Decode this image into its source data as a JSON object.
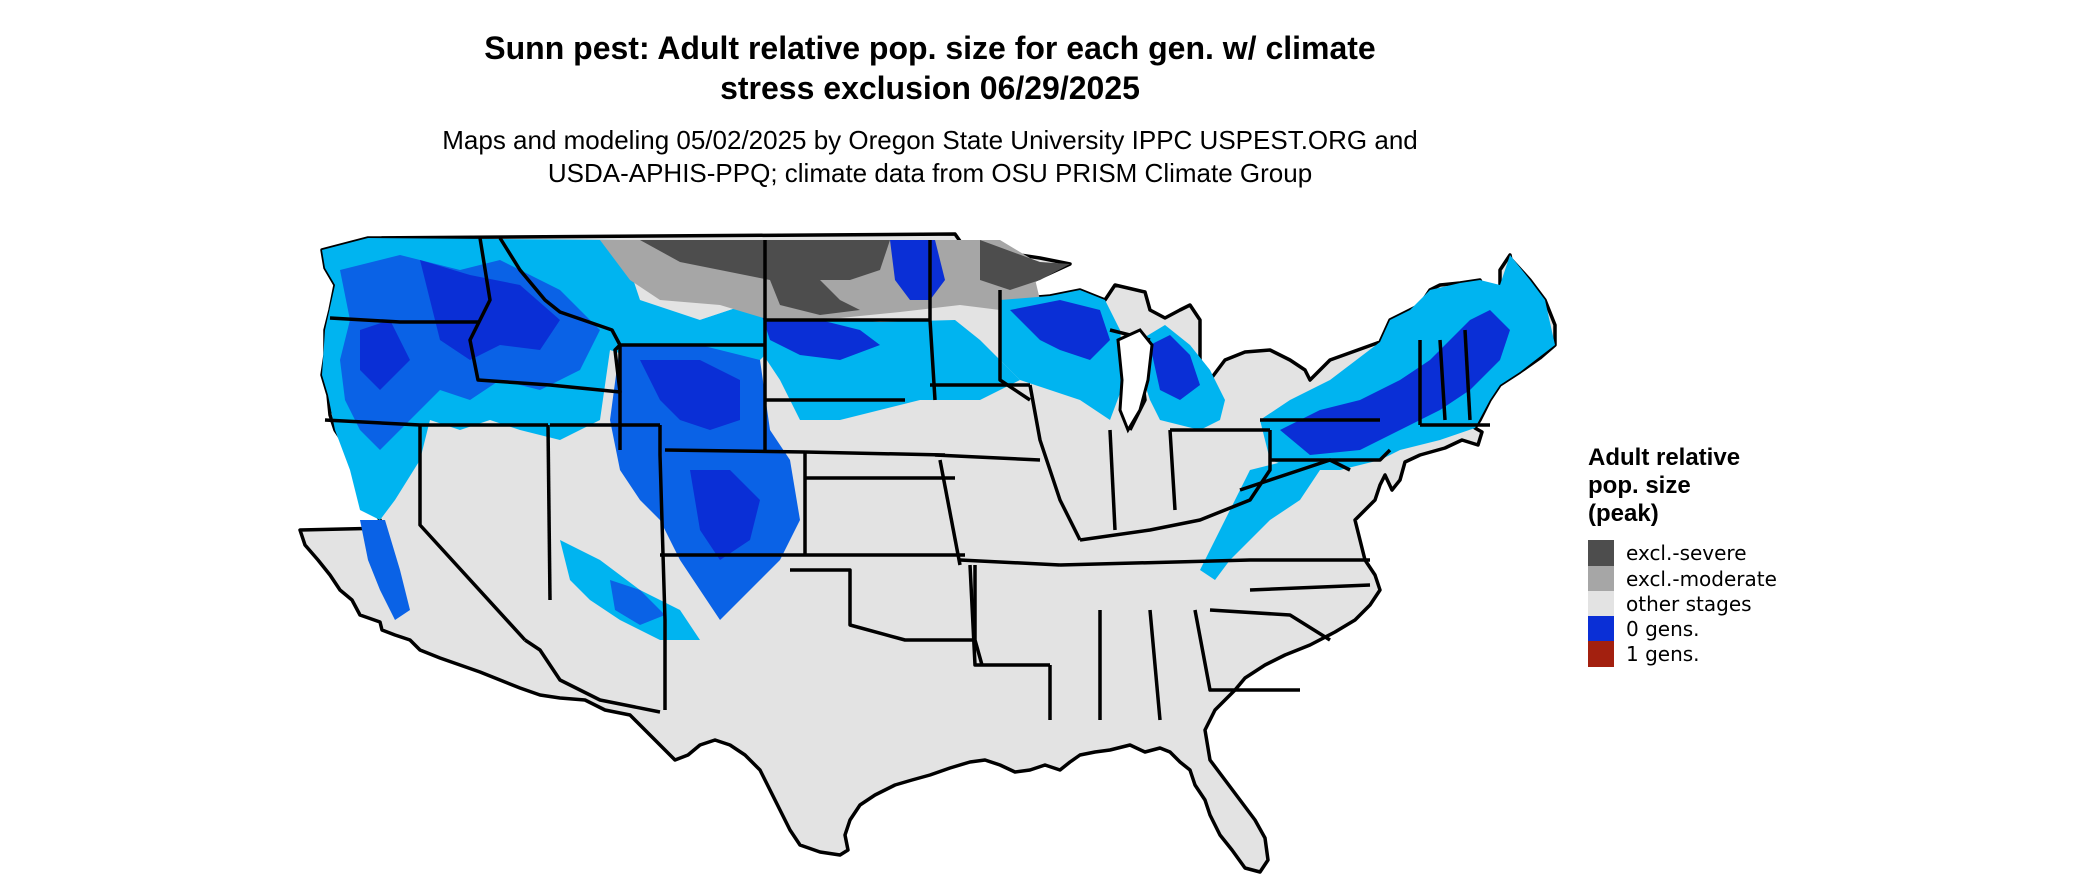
{
  "title_line1": "Sunn pest: Adult relative pop. size for each gen. w/ climate",
  "title_line2": "stress exclusion 06/29/2025",
  "subtitle_line1": "Maps and modeling 05/02/2025 by Oregon State University IPPC USPEST.ORG and",
  "subtitle_line2": "USDA-APHIS-PPQ; climate data from OSU PRISM Climate Group",
  "legend": {
    "title_line1": "Adult relative",
    "title_line2": "pop. size",
    "title_line3": "(peak)",
    "items": [
      {
        "label": "excl.-severe",
        "color": "#4d4d4d"
      },
      {
        "label": "excl.-moderate",
        "color": "#a6a6a6"
      },
      {
        "label": "other stages",
        "color": "#e3e3e3"
      },
      {
        "label": "0 gens.",
        "color": "#0a2fd6"
      },
      {
        "label": "1 gens.",
        "color": "#a3200f"
      }
    ]
  },
  "colors": {
    "background_land": "#e3e3e3",
    "light_blue": "#00b4f0",
    "medium_blue": "#0a62e6",
    "dark_blue": "#0a2fd6",
    "exclusion_severe": "#4d4d4d",
    "exclusion_moderate": "#a6a6a6",
    "state_borders": "#000000"
  }
}
